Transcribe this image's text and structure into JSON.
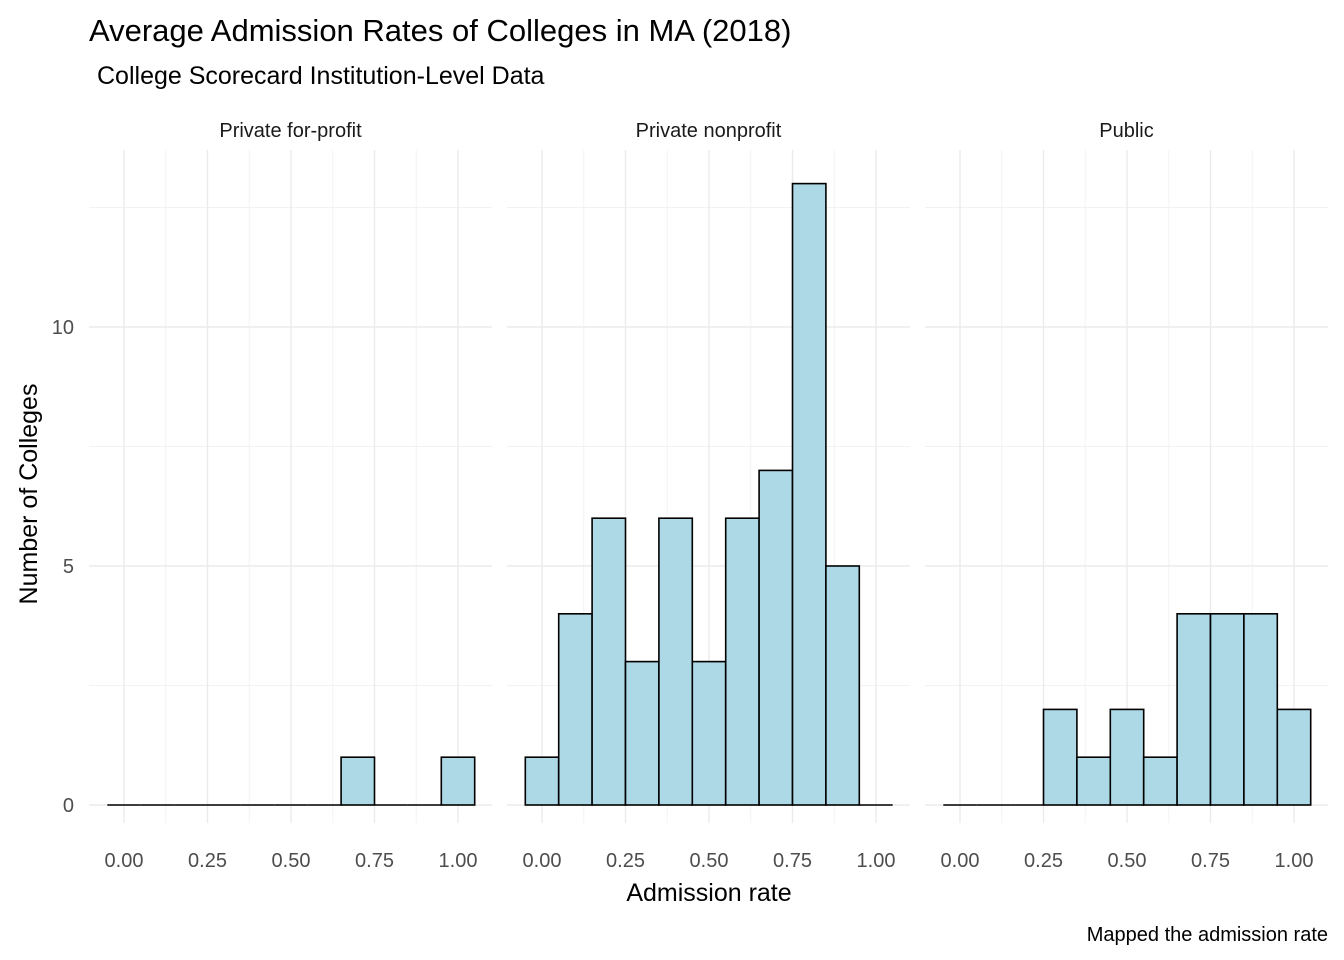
{
  "chart_data": {
    "type": "bar",
    "title": "Average Admission Rates of Colleges in MA (2018)",
    "subtitle": "College Scorecard Institution-Level Data",
    "xlabel": "Admission rate",
    "ylabel": "Number of Colleges",
    "caption": "Mapped the admission rate",
    "bar_color": "#add8e6",
    "bar_outline_color": "#000000",
    "grid": true,
    "xlim": [
      -0.05,
      1.05
    ],
    "ylim": [
      0,
      13
    ],
    "x_ticks": [
      "0.00",
      "0.25",
      "0.50",
      "0.75",
      "1.00"
    ],
    "y_ticks": [
      "0",
      "5",
      "10"
    ],
    "bin_width": 0.1,
    "bin_centers": [
      0.0,
      0.1,
      0.2,
      0.3,
      0.4,
      0.5,
      0.6,
      0.7,
      0.8,
      0.9,
      1.0
    ],
    "panels": [
      {
        "name": "Private for-profit",
        "counts": [
          0,
          0,
          0,
          0,
          0,
          0,
          0,
          1,
          0,
          0,
          1
        ]
      },
      {
        "name": "Private nonprofit",
        "counts": [
          1,
          4,
          6,
          3,
          6,
          3,
          6,
          7,
          13,
          5,
          0
        ]
      },
      {
        "name": "Public",
        "counts": [
          0,
          0,
          0,
          2,
          1,
          2,
          1,
          4,
          4,
          4,
          2
        ]
      }
    ]
  }
}
